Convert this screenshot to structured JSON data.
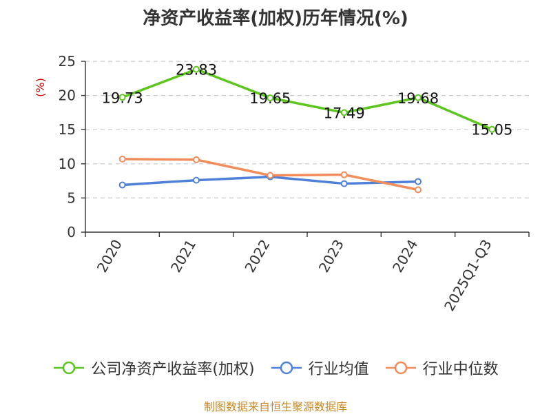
{
  "chart_data": {
    "type": "line",
    "title": "净资产收益率(加权)历年情况(%)",
    "ylabel": "(%)",
    "xlabel": "",
    "categories": [
      "2020",
      "2021",
      "2022",
      "2023",
      "2024",
      "2025Q1-Q3"
    ],
    "ylim": [
      0,
      25
    ],
    "yticks": [
      0,
      5,
      10,
      15,
      20,
      25
    ],
    "grid": true,
    "legend_position": "bottom",
    "series": [
      {
        "name": "公司净资产收益率(加权)",
        "color": "#5cc51e",
        "values": [
          19.73,
          23.83,
          19.65,
          17.49,
          19.68,
          15.05
        ],
        "labels": [
          "19.73",
          "23.83",
          "19.65",
          "17.49",
          "19.68",
          "15.05"
        ]
      },
      {
        "name": "行业均值",
        "color": "#4f81d9",
        "values": [
          6.9,
          7.6,
          8.1,
          7.1,
          7.4,
          null
        ]
      },
      {
        "name": "行业中位数",
        "color": "#f28c5a",
        "values": [
          10.7,
          10.6,
          8.3,
          8.4,
          6.2,
          null
        ]
      }
    ]
  },
  "source_note": "制图数据来自恒生聚源数据库"
}
